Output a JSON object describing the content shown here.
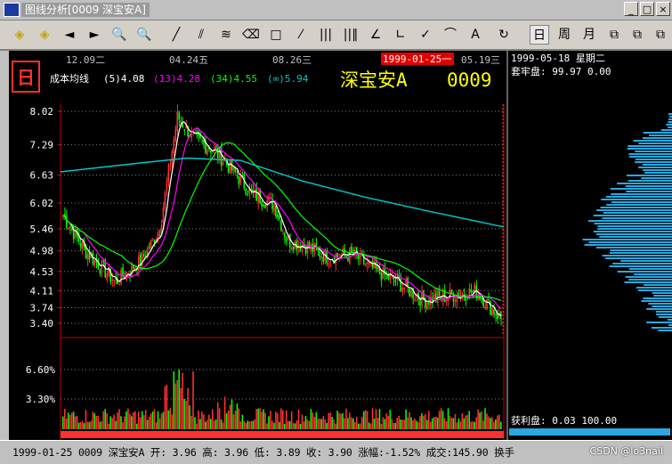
{
  "window": {
    "title": "图线分析[0009 深宝安A]",
    "minimize": "_",
    "maximize": "□",
    "close": "×"
  },
  "toolbar": {
    "buttons": [
      {
        "icon": "diamond-up-icon",
        "glyph": "◈"
      },
      {
        "icon": "diamond-down-icon",
        "glyph": "◈"
      },
      {
        "icon": "arrow-left-icon",
        "glyph": "◄"
      },
      {
        "icon": "arrow-right-icon",
        "glyph": "►"
      },
      {
        "icon": "zoom-out-icon",
        "glyph": "🔍"
      },
      {
        "icon": "zoom-in-icon",
        "glyph": "🔍"
      },
      {
        "icon": "line-tool-icon",
        "glyph": "╱"
      },
      {
        "icon": "parallel-line-icon",
        "glyph": "⫽"
      },
      {
        "icon": "fibonacci-icon",
        "glyph": "≋"
      },
      {
        "icon": "eraser-icon",
        "glyph": "⌫"
      },
      {
        "icon": "rectangle-icon",
        "glyph": "□"
      },
      {
        "icon": "speed-line-icon",
        "glyph": "⁄"
      },
      {
        "icon": "period-lines-icon",
        "glyph": "|||"
      },
      {
        "icon": "gann-lines-icon",
        "glyph": "||‖"
      },
      {
        "icon": "angle-icon",
        "glyph": "∠"
      },
      {
        "icon": "angle2-icon",
        "glyph": "∟"
      },
      {
        "icon": "check-arc-icon",
        "glyph": "✓"
      },
      {
        "icon": "arc-icon",
        "glyph": "⌒"
      },
      {
        "icon": "text-icon",
        "glyph": "A"
      },
      {
        "icon": "rotate-icon",
        "glyph": "↻"
      },
      {
        "icon": "day-period",
        "glyph": "日"
      },
      {
        "icon": "week-period",
        "glyph": "周"
      },
      {
        "icon": "month-period",
        "glyph": "月"
      },
      {
        "icon": "window1-icon",
        "glyph": "⧉"
      },
      {
        "icon": "window2-icon",
        "glyph": "⧉"
      },
      {
        "icon": "window3-icon",
        "glyph": "⧉"
      }
    ]
  },
  "chart": {
    "period_badge": "日",
    "indicator_name": "成本均线",
    "ma": [
      {
        "label": "(5)4.08",
        "color": "#ffffff"
      },
      {
        "label": "(13)4.28",
        "color": "#ff00ff"
      },
      {
        "label": "(34)4.55",
        "color": "#00ff00"
      },
      {
        "label": "(∞)5.94",
        "color": "#00c8c8"
      }
    ],
    "stock_name": "深宝安A",
    "stock_code": "0009",
    "date_labels": [
      "12.09二",
      "04.24五",
      "08.26三",
      "05.19三"
    ],
    "cursor_date": "1999-01-25一",
    "price_ticks": [
      "8.02",
      "7.29",
      "6.63",
      "6.02",
      "5.46",
      "4.98",
      "4.53",
      "4.11",
      "3.74",
      "3.40"
    ],
    "volume_ticks": [
      "6.60%",
      "3.30%"
    ],
    "colors": {
      "up": "#ff3030",
      "down": "#00ff00",
      "ma_long": "#00c8c8",
      "axis": "#c00000",
      "grid": "#808080"
    }
  },
  "chip_panel": {
    "date": "1999-05-18 星期二",
    "profit_label": "套牢盘: 99.97 0.00",
    "bottom_label": "获利盘: 0.03 100.00"
  },
  "status": {
    "text": "1999-01-25 0009 深宝安A 开: 3.96 高: 3.96 低: 3.89 收: 3.90 涨幅:-1.52% 成交:145.90 换手",
    "watermark": "CSDN @lo3nail"
  }
}
